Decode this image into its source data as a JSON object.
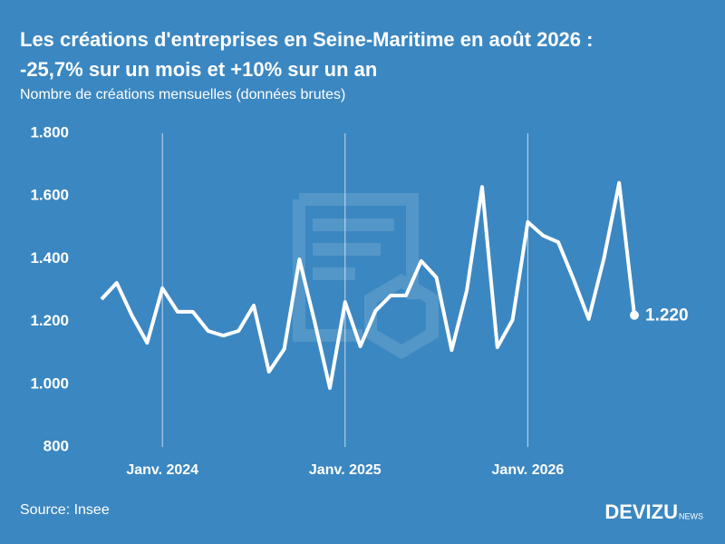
{
  "chart_data": {
    "type": "line",
    "title": [
      "Les créations d'entreprises en Seine-Maritime en août 2026 :",
      "-25,7% sur un mois et +10% sur un an"
    ],
    "subtitle": "Nombre de créations mensuelles (données brutes)",
    "source": "Source: Insee",
    "brand": "DEVIZU",
    "brand_suffix": "NEWS",
    "categories": [
      null,
      null,
      null,
      null,
      "Janv. 2024",
      null,
      null,
      null,
      null,
      null,
      null,
      null,
      null,
      null,
      null,
      null,
      "Janv. 2025",
      null,
      null,
      null,
      null,
      null,
      null,
      null,
      null,
      null,
      null,
      null,
      "Janv. 2026",
      null,
      null,
      null,
      null,
      null,
      null,
      null
    ],
    "series": [
      {
        "name": "Créations",
        "color": "#ffffff",
        "values": [
          1271,
          1323,
          1219,
          1132,
          1306,
          1231,
          1231,
          1170,
          1155,
          1170,
          1251,
          1040,
          1112,
          1398,
          1199,
          988,
          1262,
          1121,
          1234,
          1283,
          1283,
          1393,
          1340,
          1109,
          1300,
          1629,
          1118,
          1205,
          1517,
          1474,
          1453,
          1335,
          1208,
          1401,
          1642,
          1220
        ],
        "value_labels": [
          null,
          null,
          null,
          null,
          null,
          null,
          null,
          null,
          null,
          null,
          null,
          null,
          null,
          null,
          null,
          null,
          null,
          null,
          null,
          null,
          null,
          null,
          null,
          null,
          null,
          null,
          null,
          null,
          null,
          null,
          null,
          null,
          null,
          null,
          null,
          "1.220"
        ]
      }
    ],
    "ylim": [
      800,
      1800
    ],
    "yticks": [
      800,
      {
        "value": 1000,
        "label": "1.000"
      },
      {
        "value": 1200,
        "label": "1.200"
      },
      {
        "value": 1400,
        "label": "1.400"
      },
      {
        "value": 1600,
        "label": "1.600"
      },
      {
        "value": 1800,
        "label": "1.800"
      }
    ],
    "grid": false,
    "x_grid": true
  }
}
